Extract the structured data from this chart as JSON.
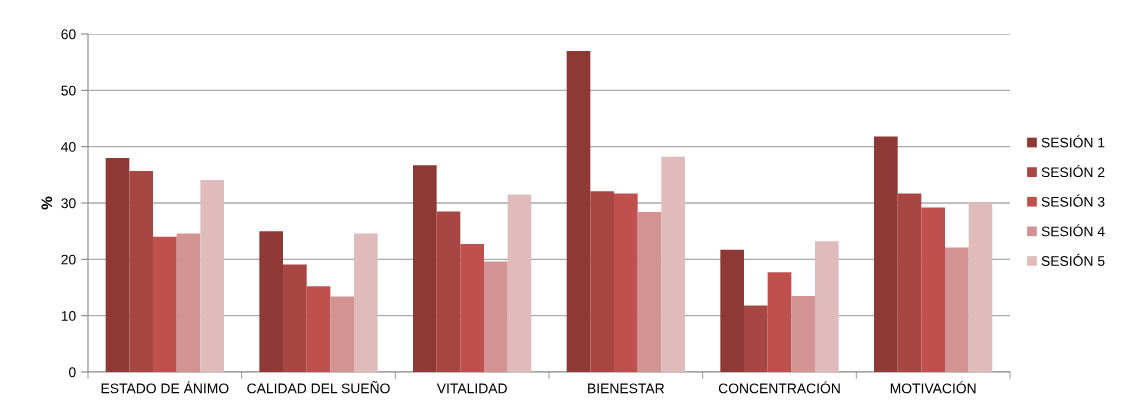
{
  "chart_data": {
    "type": "bar",
    "ylabel": "%",
    "categories": [
      "ESTADO DE ÁNIMO",
      "CALIDAD DEL SUEÑO",
      "VITALIDAD",
      "BIENESTAR",
      "CONCENTRACIÓN",
      "MOTIVACIÓN"
    ],
    "series": [
      {
        "name": "SESIÓN 1",
        "color": "#8e3936",
        "values": [
          38.0,
          25.0,
          36.7,
          57.0,
          21.7,
          41.8
        ]
      },
      {
        "name": "SESIÓN 2",
        "color": "#a84644",
        "values": [
          35.7,
          19.1,
          28.5,
          32.1,
          11.8,
          31.7
        ]
      },
      {
        "name": "SESIÓN 3",
        "color": "#c0504d",
        "values": [
          24.0,
          15.2,
          22.7,
          31.7,
          17.7,
          29.2
        ]
      },
      {
        "name": "SESIÓN 4",
        "color": "#d39392",
        "values": [
          24.6,
          13.4,
          19.6,
          28.4,
          13.5,
          22.1
        ]
      },
      {
        "name": "SESIÓN 5",
        "color": "#e0bbbb",
        "values": [
          34.1,
          24.6,
          31.5,
          38.2,
          23.2,
          30.0
        ]
      }
    ],
    "ylim": [
      0,
      60
    ],
    "yticks": [
      0,
      10,
      20,
      30,
      40,
      50,
      60
    ],
    "grid": "y",
    "legend": "right"
  }
}
